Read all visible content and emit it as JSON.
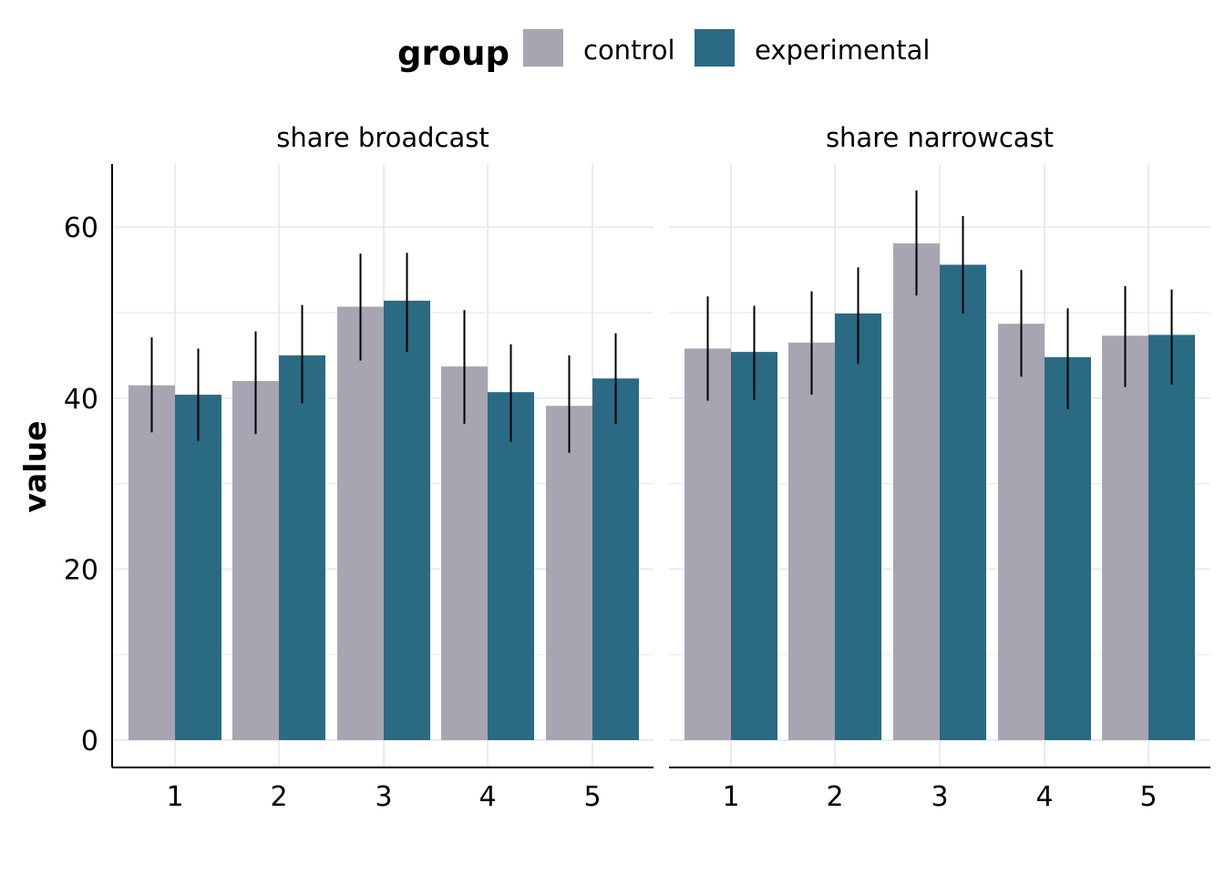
{
  "chart_data": {
    "type": "bar",
    "ylabel": "value",
    "ylim": [
      0,
      67
    ],
    "y_ticks": [
      0,
      20,
      40,
      60
    ],
    "categories": [
      "1",
      "2",
      "3",
      "4",
      "5"
    ],
    "grid": true,
    "legend": {
      "title": "group",
      "placement": "top",
      "entries": [
        {
          "name": "control",
          "color": "#a8a4b1"
        },
        {
          "name": "experimental",
          "color": "#2b6a83"
        }
      ]
    },
    "facets": [
      {
        "title": "share broadcast",
        "series": [
          {
            "name": "control",
            "values": [
              41.5,
              42.0,
              50.7,
              43.7,
              39.1
            ],
            "error_low": [
              36.0,
              35.8,
              44.4,
              37.0,
              33.6
            ],
            "error_high": [
              47.1,
              47.8,
              56.9,
              50.3,
              45.0
            ]
          },
          {
            "name": "experimental",
            "values": [
              40.4,
              45.0,
              51.4,
              40.7,
              42.3
            ],
            "error_low": [
              35.0,
              39.4,
              45.4,
              34.9,
              37.0
            ],
            "error_high": [
              45.8,
              50.9,
              57.0,
              46.3,
              47.6
            ]
          }
        ]
      },
      {
        "title": "share narrowcast",
        "series": [
          {
            "name": "control",
            "values": [
              45.8,
              46.5,
              58.1,
              48.7,
              47.3
            ],
            "error_low": [
              39.7,
              40.4,
              52.0,
              42.5,
              41.3
            ],
            "error_high": [
              51.9,
              52.5,
              64.3,
              55.0,
              53.1
            ]
          },
          {
            "name": "experimental",
            "values": [
              45.4,
              49.9,
              55.6,
              44.8,
              47.4
            ],
            "error_low": [
              39.8,
              44.0,
              49.9,
              38.7,
              41.6
            ],
            "error_high": [
              50.8,
              55.3,
              61.3,
              50.5,
              52.7
            ]
          }
        ]
      }
    ]
  }
}
